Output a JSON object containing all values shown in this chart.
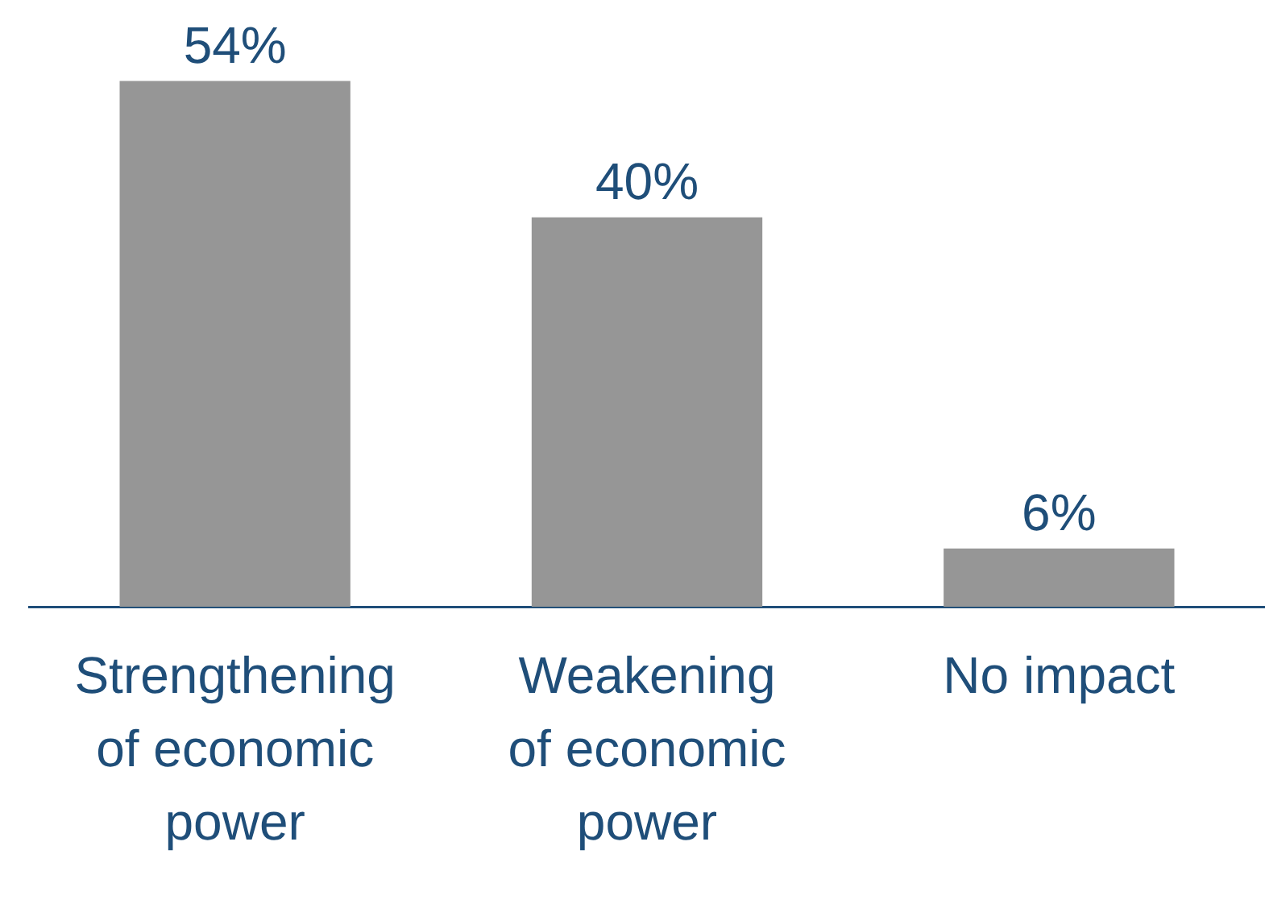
{
  "chart_data": {
    "type": "bar",
    "categories": [
      "Strengthening of economic power",
      "Weakening of economic power",
      "No impact"
    ],
    "values": [
      54,
      40,
      6
    ],
    "color": "#969696",
    "value_labels": [
      "54%",
      "40%",
      "6%"
    ],
    "legend": false,
    "grid": false
  }
}
